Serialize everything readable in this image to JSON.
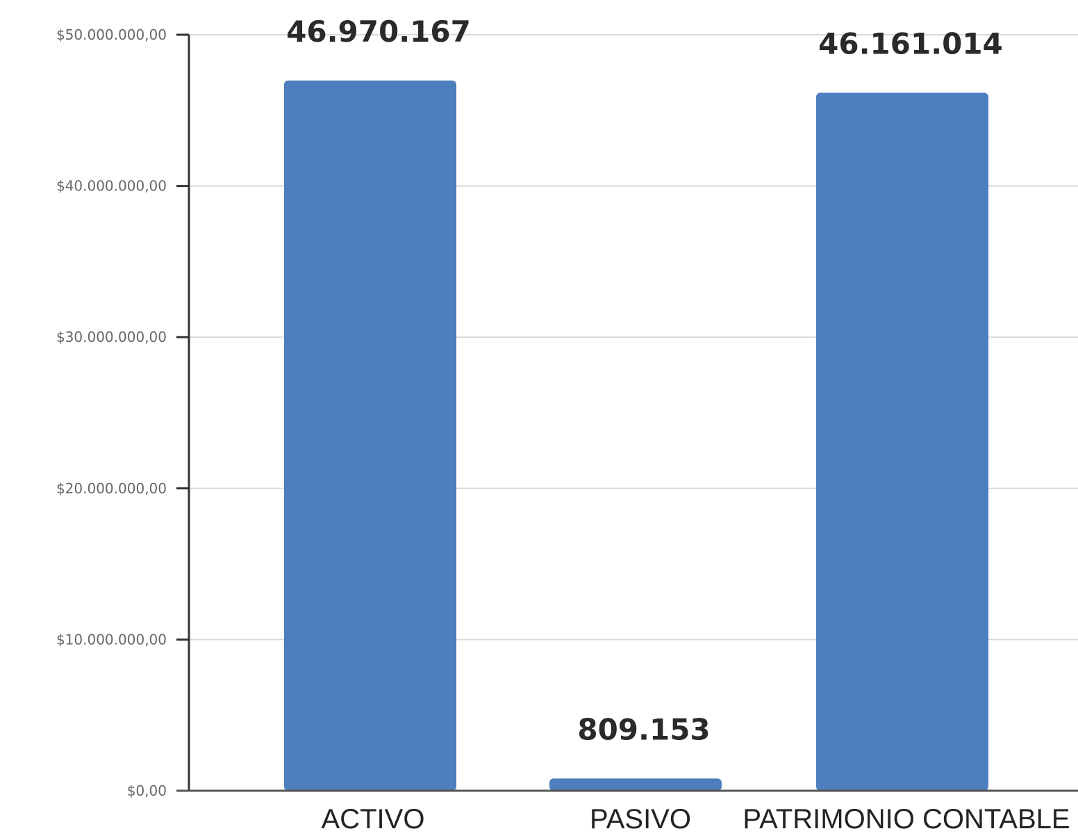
{
  "chart_data": {
    "type": "bar",
    "categories": [
      "ACTIVO",
      "PASIVO",
      "PATRIMONIO CONTABLE"
    ],
    "values": [
      46970167,
      809153,
      46161014
    ],
    "data_labels": [
      "46.970.167",
      "809.153",
      "46.161.014"
    ],
    "y_ticks": [
      0,
      10000000,
      20000000,
      30000000,
      40000000,
      50000000
    ],
    "y_tick_labels": [
      "$0,00",
      "$10.000.000,00",
      "$20.000.000,00",
      "$30.000.000,00",
      "$40.000.000,00",
      "$50.000.000,00"
    ],
    "ylim": [
      0,
      50000000
    ],
    "grid": true,
    "legend": "none",
    "bar_color": "#4d7ebd",
    "grid_color": "#d9d9d9",
    "axis_color": "#333333"
  }
}
